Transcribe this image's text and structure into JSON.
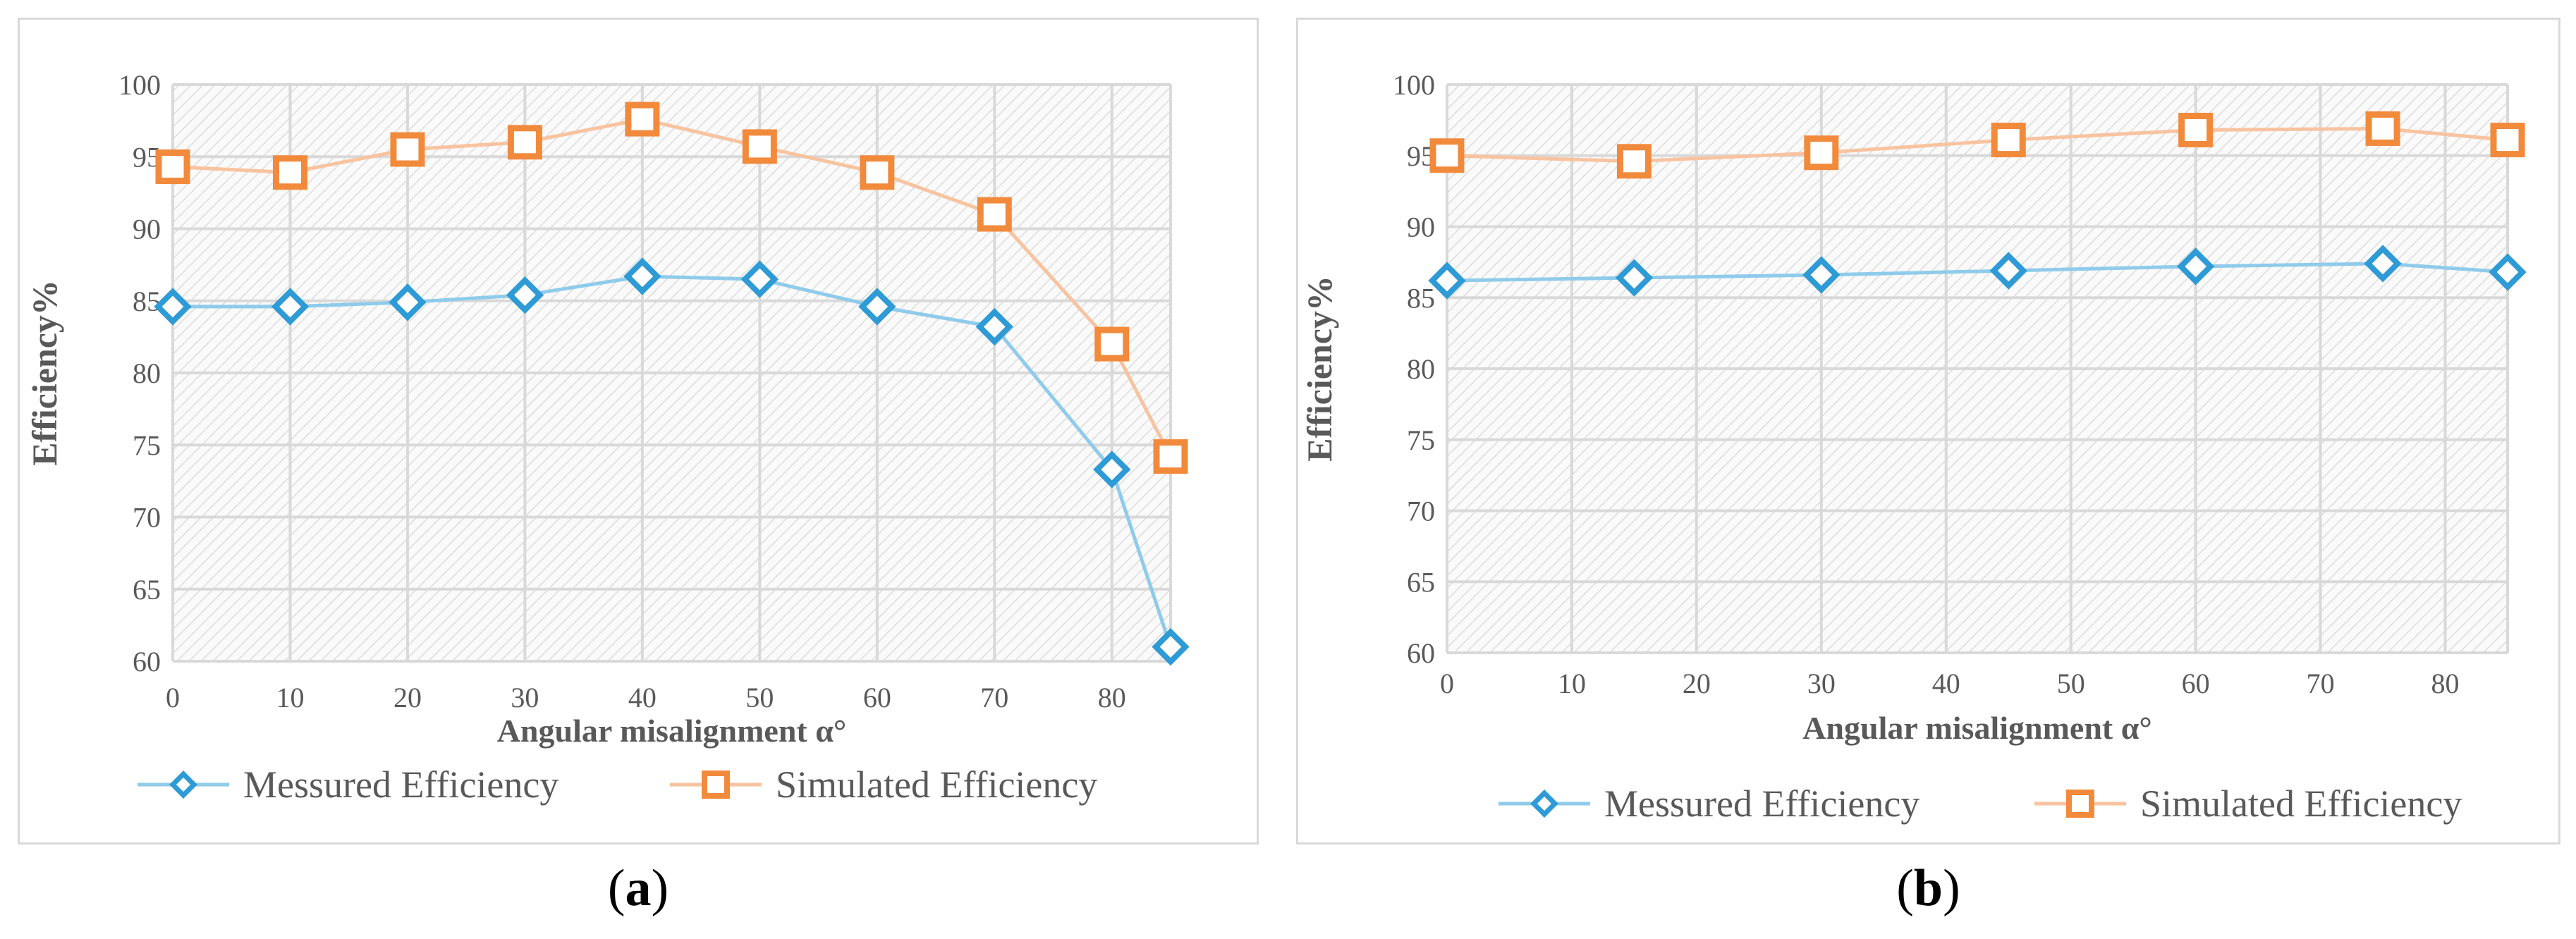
{
  "chart_data": [
    {
      "type": "line",
      "panel_label": "a",
      "title": "",
      "xlabel": "Angular misalignment α°",
      "ylabel": "Efficiency%",
      "xlim": [
        0,
        85
      ],
      "ylim": [
        60,
        100
      ],
      "x_ticks": [
        0,
        10,
        20,
        30,
        40,
        50,
        60,
        70,
        80
      ],
      "y_ticks": [
        60,
        65,
        70,
        75,
        80,
        85,
        90,
        95,
        100
      ],
      "grid": true,
      "legend_position": "bottom",
      "series": [
        {
          "name": "Messured Efficiency",
          "color": "#2e9bd6",
          "line_color": "#8fcbea",
          "marker": "diamond",
          "x": [
            0,
            10,
            20,
            30,
            40,
            50,
            60,
            70,
            80,
            85
          ],
          "values": [
            84.6,
            84.6,
            84.9,
            85.4,
            86.7,
            86.5,
            84.6,
            83.2,
            73.3,
            61.0
          ]
        },
        {
          "name": "Simulated Efficiency",
          "color": "#f28a3c",
          "line_color": "#f8c3a0",
          "marker": "square",
          "x": [
            0,
            10,
            20,
            30,
            40,
            50,
            60,
            70,
            80,
            85
          ],
          "values": [
            94.3,
            93.9,
            95.5,
            96.0,
            97.6,
            95.7,
            93.9,
            91.0,
            82.0,
            74.2
          ]
        }
      ]
    },
    {
      "type": "line",
      "panel_label": "b",
      "title": "",
      "xlabel": "Angular misalignment α°",
      "ylabel": "Efficiency%",
      "xlim": [
        0,
        85
      ],
      "ylim": [
        60,
        100
      ],
      "x_ticks": [
        0,
        10,
        20,
        30,
        40,
        50,
        60,
        70,
        80
      ],
      "y_ticks": [
        60,
        65,
        70,
        75,
        80,
        85,
        90,
        95,
        100
      ],
      "grid": true,
      "legend_position": "bottom",
      "series": [
        {
          "name": "Messured Efficiency",
          "color": "#2e9bd6",
          "line_color": "#8fcbea",
          "marker": "diamond",
          "x": [
            0,
            15,
            30,
            45,
            60,
            75,
            85
          ],
          "values": [
            86.2,
            86.4,
            86.6,
            86.9,
            87.2,
            87.4,
            86.8
          ]
        },
        {
          "name": "Simulated Efficiency",
          "color": "#f28a3c",
          "line_color": "#f8c3a0",
          "marker": "square",
          "x": [
            0,
            15,
            30,
            45,
            60,
            75,
            85
          ],
          "values": [
            95.0,
            94.6,
            95.2,
            96.1,
            96.8,
            96.9,
            96.1
          ]
        }
      ]
    }
  ],
  "captions": {
    "a": {
      "open": "(",
      "letter": "a",
      "close": ")"
    },
    "b": {
      "open": "(",
      "letter": "b",
      "close": ")"
    }
  }
}
